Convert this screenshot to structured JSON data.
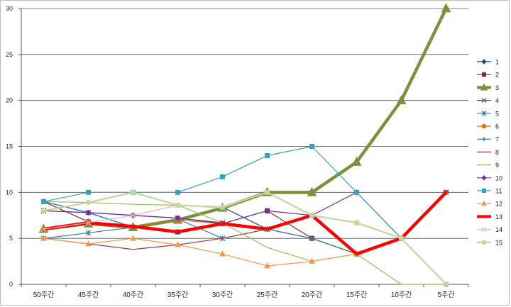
{
  "chart_data": {
    "type": "line",
    "categories": [
      "50주간",
      "45주간",
      "40주간",
      "35주간",
      "30주간",
      "25주간",
      "20주간",
      "15주간",
      "10주간",
      "5주간"
    ],
    "ylim": [
      0,
      30
    ],
    "yticks": [
      0,
      5,
      10,
      15,
      20,
      25,
      30
    ],
    "grid": true,
    "legend_position": "right",
    "series": [
      {
        "name": "1",
        "color": "#1f4e79",
        "marker": "diamond",
        "width": 1.2,
        "values": [
          9.0,
          7.8,
          6.2,
          7.0,
          8.4,
          6.0,
          5.0,
          3.3,
          5.0,
          10.0
        ]
      },
      {
        "name": "2",
        "color": "#7f2a2a",
        "marker": "square",
        "width": 1.2,
        "values": [
          9.0,
          6.8,
          6.2,
          5.7,
          6.6,
          8.0,
          5.0,
          3.3,
          5.0,
          10.0
        ]
      },
      {
        "name": "3",
        "color": "#77933c",
        "marker": "triangle",
        "width": 4.5,
        "values": [
          6.0,
          6.6,
          6.2,
          7.0,
          8.3,
          10.0,
          10.0,
          13.3,
          20.0,
          30.0
        ]
      },
      {
        "name": "4",
        "color": "#5f4b8b",
        "marker": "x",
        "width": 1.2,
        "values": [
          8.0,
          7.8,
          7.5,
          7.2,
          6.7,
          6.0,
          7.5,
          3.3,
          5.0,
          10.0
        ]
      },
      {
        "name": "5",
        "color": "#31859c",
        "marker": "star",
        "width": 1.2,
        "values": [
          5.0,
          5.6,
          6.2,
          7.1,
          5.0,
          6.0,
          5.0,
          3.3,
          5.0,
          10.0
        ]
      },
      {
        "name": "6",
        "color": "#e46c0a",
        "marker": "circle",
        "width": 1.2,
        "values": [
          6.0,
          6.7,
          6.3,
          7.0,
          6.6,
          6.0,
          7.5,
          6.7,
          5.0,
          0.0
        ]
      },
      {
        "name": "7",
        "color": "#2e75b6",
        "marker": "plus",
        "width": 1.2,
        "values": [
          9.0,
          7.8,
          6.2,
          5.7,
          6.6,
          6.0,
          7.5,
          6.7,
          5.0,
          0.0
        ]
      },
      {
        "name": "8",
        "color": "#a33c3c",
        "marker": "none",
        "width": 1.2,
        "values": [
          5.0,
          4.4,
          3.8,
          4.3,
          5.0,
          6.0,
          7.5,
          6.7,
          5.0,
          0.0
        ]
      },
      {
        "name": "9",
        "color": "#9bbb59",
        "marker": "none",
        "width": 1.2,
        "values": [
          9.0,
          8.9,
          8.7,
          8.6,
          6.7,
          4.0,
          2.5,
          3.3,
          0.0,
          0.0
        ]
      },
      {
        "name": "10",
        "color": "#7030a0",
        "marker": "diamond",
        "width": 1.2,
        "values": [
          8.0,
          7.8,
          7.5,
          7.2,
          6.6,
          8.0,
          7.5,
          10.0,
          5.0,
          0.0
        ]
      },
      {
        "name": "11",
        "color": "#31a3c4",
        "marker": "square",
        "width": 1.2,
        "values": [
          9.0,
          10.0,
          10.0,
          10.0,
          11.7,
          14.0,
          15.0,
          10.0,
          5.0,
          0.0
        ]
      },
      {
        "name": "12",
        "color": "#f79646",
        "marker": "triangle",
        "width": 1.2,
        "values": [
          5.0,
          4.4,
          5.0,
          4.3,
          3.3,
          2.0,
          2.5,
          3.3,
          5.0,
          10.0
        ]
      },
      {
        "name": "13",
        "color": "#ff0000",
        "marker": "none",
        "width": 4.5,
        "values": [
          6.0,
          6.7,
          6.3,
          5.7,
          6.6,
          6.0,
          7.5,
          3.3,
          5.0,
          10.0
        ]
      },
      {
        "name": "14",
        "color": "#e6b9b8",
        "marker": "x",
        "width": 1.2,
        "values": [
          6.0,
          6.7,
          7.5,
          8.6,
          8.3,
          10.0,
          7.5,
          6.7,
          5.0,
          0.0
        ]
      },
      {
        "name": "15",
        "color": "#c4d79b",
        "marker": "circle",
        "width": 2.2,
        "values": [
          8.0,
          8.9,
          10.0,
          8.6,
          8.4,
          10.0,
          7.5,
          6.7,
          5.0,
          0.0
        ]
      }
    ]
  }
}
